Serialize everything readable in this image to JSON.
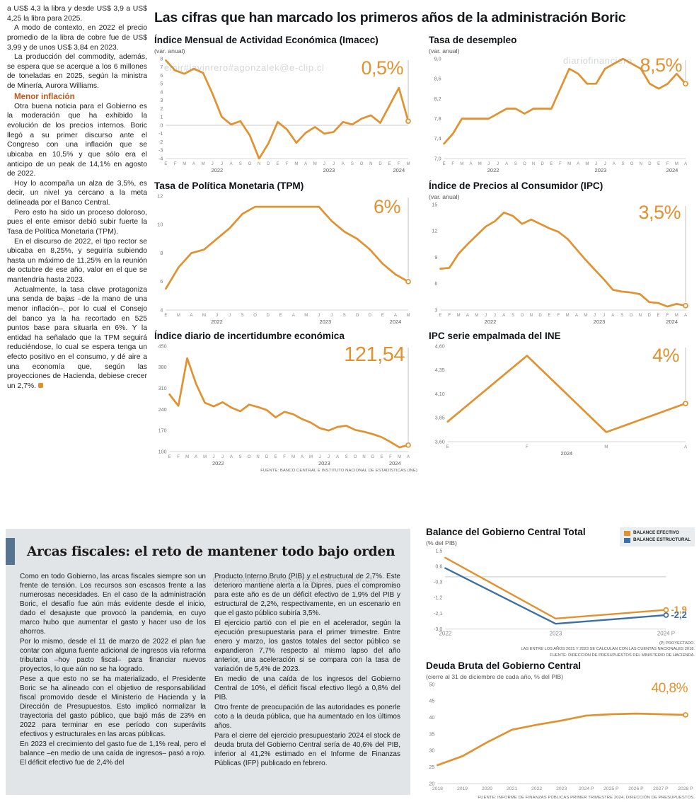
{
  "watermarks": {
    "wm1": "emir#lavinrero#agonzalek@e-clip.cl",
    "wm2": "diariofinanciero",
    "wm3": "emir#lavinrero#agonzalek@e-clip.cl"
  },
  "left_column": {
    "p0": "a US$ 4,3 la libra y desde US$ 3,9 a US$ 4,25 la libra para 2025.",
    "p1": "A modo de contexto, en 2022 el precio promedio de la libra de cobre fue de US$ 3,99 y de unos US$ 3,84 en 2023.",
    "p2": "La producción del commodity, además, se espera que se acerque a los 6 millones de toneladas en 2025, según la ministra de Minería, Aurora Williams.",
    "subhead": "Menor inflación",
    "p3": "Otra buena noticia para el Gobierno es la moderación que ha exhibido la evolución de los precios internos. Boric llegó a su primer discurso ante el Congreso con una inflación que se ubicaba en 10,5% y que sólo era el anticipo de un peak de 14,1% en agosto de 2022.",
    "p4": "Hoy lo acompaña un alza de 3,5%, es decir, un nivel ya cercano a la meta delineada por el Banco Central.",
    "p5": "Pero esto ha sido un proceso doloroso, pues el ente emisor debió subir fuerte la Tasa de Política Monetaria (TPM).",
    "p6": "En el discurso de 2022, el tipo rector se ubicaba en 8,25%, y seguiría subiendo hasta un máximo de 11,25% en la reunión de octubre de ese año, valor en el que se mantendría hasta 2023.",
    "p7": "Actualmente, la tasa clave protagoniza una senda de bajas –de la mano de una menor inflación–, por lo cual el Consejo del banco ya la ha recortado en 525 puntos base para situarla en 6%. Y la entidad ha señalado que la TPM seguirá reduciéndose, lo cual se espera tenga un efecto positivo en el consumo, y dé aire a una economía que, según las proyecciones de Hacienda, debiese crecer un 2,7%."
  },
  "main": {
    "title": "Las cifras que han marcado los primeros años de la administración Boric"
  },
  "chart_data": [
    {
      "id": "imacec",
      "type": "line",
      "title": "Índice Mensual de Actividad Económica (Imacec)",
      "subtitle": "(var. anual)",
      "callout": "0,5%",
      "ylim": [
        -4,
        8
      ],
      "y_ticks": [
        "8",
        "7",
        "6",
        "5",
        "4",
        "3",
        "2",
        "1",
        "0",
        "-1",
        "-2",
        "-3",
        "-4"
      ],
      "x_labels": [
        "E",
        "F",
        "M",
        "A",
        "M",
        "J",
        "J",
        "A",
        "S",
        "O",
        "N",
        "D",
        "E",
        "F",
        "M",
        "A",
        "M",
        "J",
        "J",
        "A",
        "S",
        "O",
        "N",
        "D",
        "E",
        "F",
        "M"
      ],
      "x_groups": [
        {
          "label": "2022",
          "start": 0,
          "end": 11
        },
        {
          "label": "2023",
          "start": 12,
          "end": 23
        },
        {
          "label": "2024",
          "start": 24,
          "end": 26
        }
      ],
      "series": [
        {
          "name": "Imacec",
          "color": "#E2912F",
          "values": [
            7.8,
            6.6,
            6.2,
            6.8,
            6.3,
            3.8,
            1.0,
            0.1,
            0.5,
            -1.2,
            -4.0,
            -2.2,
            0.4,
            -0.5,
            -2.1,
            -0.9,
            -0.2,
            -1.0,
            -0.8,
            0.4,
            0.1,
            0.8,
            1.2,
            0.3,
            2.4,
            4.5,
            0.5
          ]
        }
      ]
    },
    {
      "id": "desempleo",
      "type": "line",
      "title": "Tasa de desempleo",
      "subtitle": "(var. anual)",
      "callout": "8,5%",
      "ylim": [
        7.0,
        9.0
      ],
      "y_ticks": [
        "9,0",
        "8,6",
        "8,2",
        "7,8",
        "7,4",
        "7,0"
      ],
      "x_labels": [
        "E",
        "F",
        "M",
        "A",
        "M",
        "J",
        "J",
        "A",
        "S",
        "O",
        "N",
        "D",
        "E",
        "F",
        "M",
        "A",
        "M",
        "J",
        "J",
        "A",
        "S",
        "O",
        "N",
        "D",
        "E",
        "F",
        "M",
        "A"
      ],
      "x_groups": [
        {
          "label": "2022",
          "start": 0,
          "end": 11
        },
        {
          "label": "2023",
          "start": 12,
          "end": 23
        },
        {
          "label": "2024",
          "start": 24,
          "end": 27
        }
      ],
      "series": [
        {
          "name": "Tasa de desempleo",
          "color": "#E2912F",
          "values": [
            7.3,
            7.5,
            7.8,
            7.8,
            7.8,
            7.8,
            7.9,
            8.0,
            8.0,
            7.9,
            8.0,
            8.0,
            8.0,
            8.4,
            8.8,
            8.7,
            8.5,
            8.5,
            8.8,
            8.9,
            9.0,
            8.9,
            8.8,
            8.5,
            8.4,
            8.5,
            8.7,
            8.5
          ]
        }
      ]
    },
    {
      "id": "tpm",
      "type": "line",
      "title": "Tasa de Política Monetaria (TPM)",
      "callout": "6%",
      "ylim": [
        4,
        12
      ],
      "y_ticks": [
        "12",
        "10",
        "8",
        "6",
        "4"
      ],
      "x_labels": [
        "E",
        "M",
        "A",
        "M",
        "J",
        "J",
        "S",
        "O",
        "D",
        "E",
        "A",
        "M",
        "J",
        "J",
        "S",
        "O",
        "D",
        "E",
        "A",
        "M"
      ],
      "x_groups": [
        {
          "label": "2022",
          "start": 0,
          "end": 8
        },
        {
          "label": "2023",
          "start": 9,
          "end": 16
        },
        {
          "label": "2024",
          "start": 17,
          "end": 19
        }
      ],
      "series": [
        {
          "name": "TPM",
          "color": "#E2912F",
          "values": [
            5.5,
            7.0,
            8.0,
            8.25,
            9.0,
            9.75,
            10.75,
            11.25,
            11.25,
            11.25,
            11.25,
            11.25,
            11.25,
            10.25,
            9.5,
            9.0,
            8.25,
            7.25,
            6.5,
            6.0
          ]
        }
      ]
    },
    {
      "id": "ipc",
      "type": "line",
      "title": "Índice de Precios al Consumidor (IPC)",
      "subtitle": "(var. anual)",
      "callout": "3,5%",
      "ylim": [
        3,
        15
      ],
      "y_ticks": [
        "15",
        "12",
        "9",
        "6",
        "3"
      ],
      "x_labels": [
        "E",
        "F",
        "M",
        "A",
        "M",
        "J",
        "J",
        "A",
        "S",
        "O",
        "N",
        "D",
        "E",
        "F",
        "M",
        "A",
        "M",
        "J",
        "J",
        "A",
        "S",
        "O",
        "N",
        "D",
        "E",
        "F",
        "M",
        "A"
      ],
      "x_groups": [
        {
          "label": "2022",
          "start": 0,
          "end": 11
        },
        {
          "label": "2023",
          "start": 12,
          "end": 23
        },
        {
          "label": "2024",
          "start": 24,
          "end": 27
        }
      ],
      "series": [
        {
          "name": "IPC",
          "color": "#E2912F",
          "values": [
            7.7,
            7.8,
            9.4,
            10.5,
            11.5,
            12.5,
            13.1,
            14.1,
            13.7,
            12.8,
            13.3,
            12.8,
            12.3,
            11.9,
            11.1,
            9.9,
            8.7,
            7.6,
            6.5,
            5.3,
            5.1,
            5.0,
            4.8,
            3.9,
            3.8,
            3.4,
            3.7,
            3.5
          ]
        }
      ]
    },
    {
      "id": "incertidumbre",
      "type": "line",
      "title": "Índice diario de incertidumbre económica",
      "callout": "121,54",
      "ylim": [
        100,
        450
      ],
      "y_ticks": [
        "450",
        "380",
        "310",
        "240",
        "170",
        "100"
      ],
      "x_labels": [
        "E",
        "F",
        "M",
        "A",
        "M",
        "J",
        "J",
        "A",
        "S",
        "O",
        "N",
        "D",
        "E",
        "F",
        "M",
        "A",
        "M",
        "J",
        "J",
        "A",
        "S",
        "O",
        "N",
        "D",
        "E",
        "F",
        "M",
        "A"
      ],
      "x_groups": [
        {
          "label": "2022",
          "start": 0,
          "end": 11
        },
        {
          "label": "2023",
          "start": 12,
          "end": 23
        },
        {
          "label": "2024",
          "start": 24,
          "end": 27
        }
      ],
      "series": [
        {
          "name": "Incertidumbre económica",
          "color": "#E2912F",
          "values": [
            290,
            252,
            410,
            325,
            262,
            250,
            264,
            246,
            234,
            256,
            248,
            238,
            214,
            232,
            224,
            208,
            196,
            178,
            170,
            182,
            186,
            172,
            166,
            158,
            148,
            132,
            114,
            121.54
          ]
        }
      ],
      "source": "FUENTE: BANCO CENTRAL E INSTITUTO NACIONAL DE ESTADÍSTICAS (INE)"
    },
    {
      "id": "ipc_ine",
      "type": "line",
      "title": "IPC serie empalmada del INE",
      "callout": "4%",
      "ylim": [
        3.6,
        4.6
      ],
      "y_ticks": [
        "4,60",
        "4,35",
        "4,10",
        "3,85",
        "3,60"
      ],
      "x_labels": [
        "E",
        "F",
        "M",
        "A"
      ],
      "x_groups": [
        {
          "label": "2024",
          "start": 0,
          "end": 3
        }
      ],
      "series": [
        {
          "name": "IPC serie empalmada",
          "color": "#E2912F",
          "values": [
            3.81,
            4.5,
            3.7,
            4.0
          ]
        }
      ]
    },
    {
      "id": "balance",
      "type": "line",
      "title": "Balance del Gobierno Central Total",
      "subtitle": "(% del PIB)",
      "ylim": [
        -3.0,
        1.5
      ],
      "y_ticks": [
        "1,5",
        "0,6",
        "-0,3",
        "-1,2",
        "-2,1",
        "-3,0"
      ],
      "x_labels": [
        "2022",
        "2023",
        "2024 P"
      ],
      "legend": [
        {
          "label": "BALANCE EFECTIVO",
          "color": "#E2912F"
        },
        {
          "label": "BALANCE ESTRUCTURAL",
          "color": "#3C6FA5"
        }
      ],
      "series": [
        {
          "name": "Balance efectivo",
          "color": "#E2912F",
          "callout": "-1,9",
          "values": [
            1.1,
            -2.4,
            -1.9
          ]
        },
        {
          "name": "Balance estructural",
          "color": "#3C6FA5",
          "callout": "-2,2",
          "values": [
            0.5,
            -2.7,
            -2.2
          ]
        }
      ],
      "notes": [
        "(P) PROYECTADO.",
        "LAS ENTRE LOS AÑOS 2021 Y 2023 SE CALCULAN CON LAS CUENTAS NACIONALES 2018.",
        "FUENTE: DIRECCIÓN DE PRESUPUESTOS DEL MINISTERIO DE HACIENDA."
      ]
    },
    {
      "id": "deuda",
      "type": "line",
      "title": "Deuda Bruta del Gobierno Central",
      "subtitle": "(cierre al 31 de diciembre de cada año, % del PIB)",
      "callout": "40,8%",
      "ylim": [
        20,
        50
      ],
      "y_ticks": [
        "50",
        "45",
        "40",
        "35",
        "30",
        "25",
        "20"
      ],
      "x_labels": [
        "2018",
        "2019",
        "2020",
        "2021",
        "2022",
        "2023",
        "2024 P",
        "2025 P",
        "2026 P",
        "2027 P",
        "2028 P"
      ],
      "series": [
        {
          "name": "Deuda bruta",
          "color": "#E2912F",
          "values": [
            25.6,
            28.3,
            32.5,
            36.3,
            37.8,
            39.1,
            40.6,
            41.0,
            41.2,
            41.0,
            40.8
          ]
        }
      ],
      "source": "FUENTE: INFORME DE FINANZAS PÚBLICAS PRIMER TRIMESTRE 2024, DIRECCIÓN DE PRESUPUESTOS."
    }
  ],
  "fiscal": {
    "title": "Arcas fiscales: el reto de mantener todo bajo orden",
    "col1": [
      "Como en todo Gobierno, las arcas fiscales siempre son un frente de tensión. Los recursos son escasos frente a las numerosas necesidades. En el caso de la administración Boric, el desafío fue aún más evidente desde el inicio, dado el desajuste que provocó la pandemia, en cuyo marco hubo que aumentar el gasto y hacer uso de los ahorros.",
      "Por lo mismo, desde el 11 de marzo de 2022 el plan fue contar con alguna fuente adicional de ingresos vía reforma tributaria –hoy pacto fiscal– para financiar nuevos proyectos, lo que aún no se ha logrado.",
      "Pese a que esto no se ha materializado, el Presidente Boric se ha alineado con el objetivo de responsabilidad fiscal promovido desde el Ministerio de Hacienda y la Dirección de Presupuestos. Esto implicó normalizar la trayectoria del gasto público, que bajó más de 23% en 2022 para terminar en ese período con superávits efectivos y estructurales en las arcas públicas.",
      "En 2023 el crecimiento del gasto fue de 1,1% real, pero el balance –en medio de una caída de ingresos– pasó a rojo. El déficit efectivo fue de 2,4% del"
    ],
    "col2": [
      "Producto Interno Bruto (PIB) y el estructural de 2,7%. Este deterioro mantiene alerta a la Dipres, pues el compromiso para este año es de un déficit efectivo de 1,9% del PIB y estructural de 2,2%, respectivamente, en un escenario en que el gasto público subiría 3,5%.",
      "El ejercicio partió con el pie en el acelerador, según la ejecución presupuestaria para el primer trimestre. Entre enero y marzo, los gastos totales del sector público se expandieron 7,7% respecto al mismo lapso del año anterior, una aceleración si se compara con la tasa de variación de 5,4% de 2023.",
      "En medio de una caída de los ingresos del Gobierno Central de 10%, el déficit fiscal efectivo llegó a 0,8% del PIB.",
      "Otro frente de preocupación de las autoridades es ponerle coto a la deuda pública, que ha aumentado en los últimos años.",
      "Para el cierre del ejercicio presupuestario 2024 el stock de deuda bruta del Gobierno Central sería de 40,6% del PIB, inferior al 41,2% estimado en el Informe de Finanzas Públicas (IFP) publicado en febrero."
    ]
  }
}
